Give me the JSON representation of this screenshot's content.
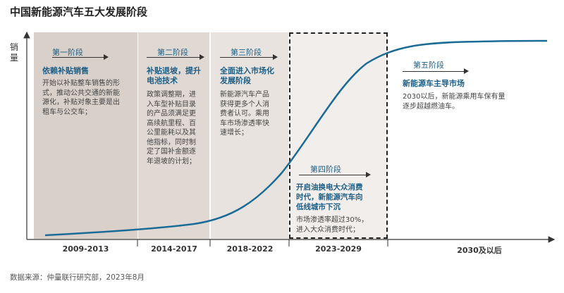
{
  "title": "中国新能源汽车五大发展阶段",
  "y_axis_label": "销量",
  "source": "数据来源：仲量联行研究部，2023年8月",
  "colors": {
    "accent": "#1d5e87",
    "curve": "#1b6b97",
    "band1": "#d8d0c9",
    "band2": "#e0d9d3",
    "band3": "#e8e3de",
    "band4": "#f1eeeb"
  },
  "stages": [
    {
      "stage": "第一阶段",
      "heading": [
        "依赖补贴销售"
      ],
      "description": [
        "开始以补贴整车销售的形",
        "式，推动公共交通的新能",
        "源化，补贴对象主要是出",
        "租车与公交车；"
      ],
      "period": "2009-2013"
    },
    {
      "stage": "第二阶段",
      "heading": [
        "补贴退坡，提升",
        "电池技术"
      ],
      "description": [
        "政策调整期，进",
        "入车型补贴目录",
        "的产品须满足更",
        "高续航里程、百",
        "公里能耗以及其",
        "他指标，同时制",
        "定了国补金额逐",
        "年退坡的计划；"
      ],
      "period": "2014-2017"
    },
    {
      "stage": "第三阶段",
      "heading": [
        "全面进入市场化",
        "发展阶段"
      ],
      "description": [
        "新能源汽车产品",
        "获得更多个人消",
        "费者认可。乘用",
        "车市场渗透率快",
        "速增长；"
      ],
      "period": "2018-2022"
    },
    {
      "stage": "第四阶段",
      "heading": [
        "开启油换电大众消费",
        "时代，新能源汽车向",
        "低线城市下沉"
      ],
      "description": [
        "市场渗透率超过30%，",
        "进入大众消费时代；"
      ],
      "period": "2023-2029"
    },
    {
      "stage": "第五阶段",
      "heading": [
        "新能源车主导市场"
      ],
      "description": [
        "2030以后，新能源乘用车保有量",
        "逐步超越燃油车。"
      ],
      "period": "2030及以后"
    }
  ]
}
